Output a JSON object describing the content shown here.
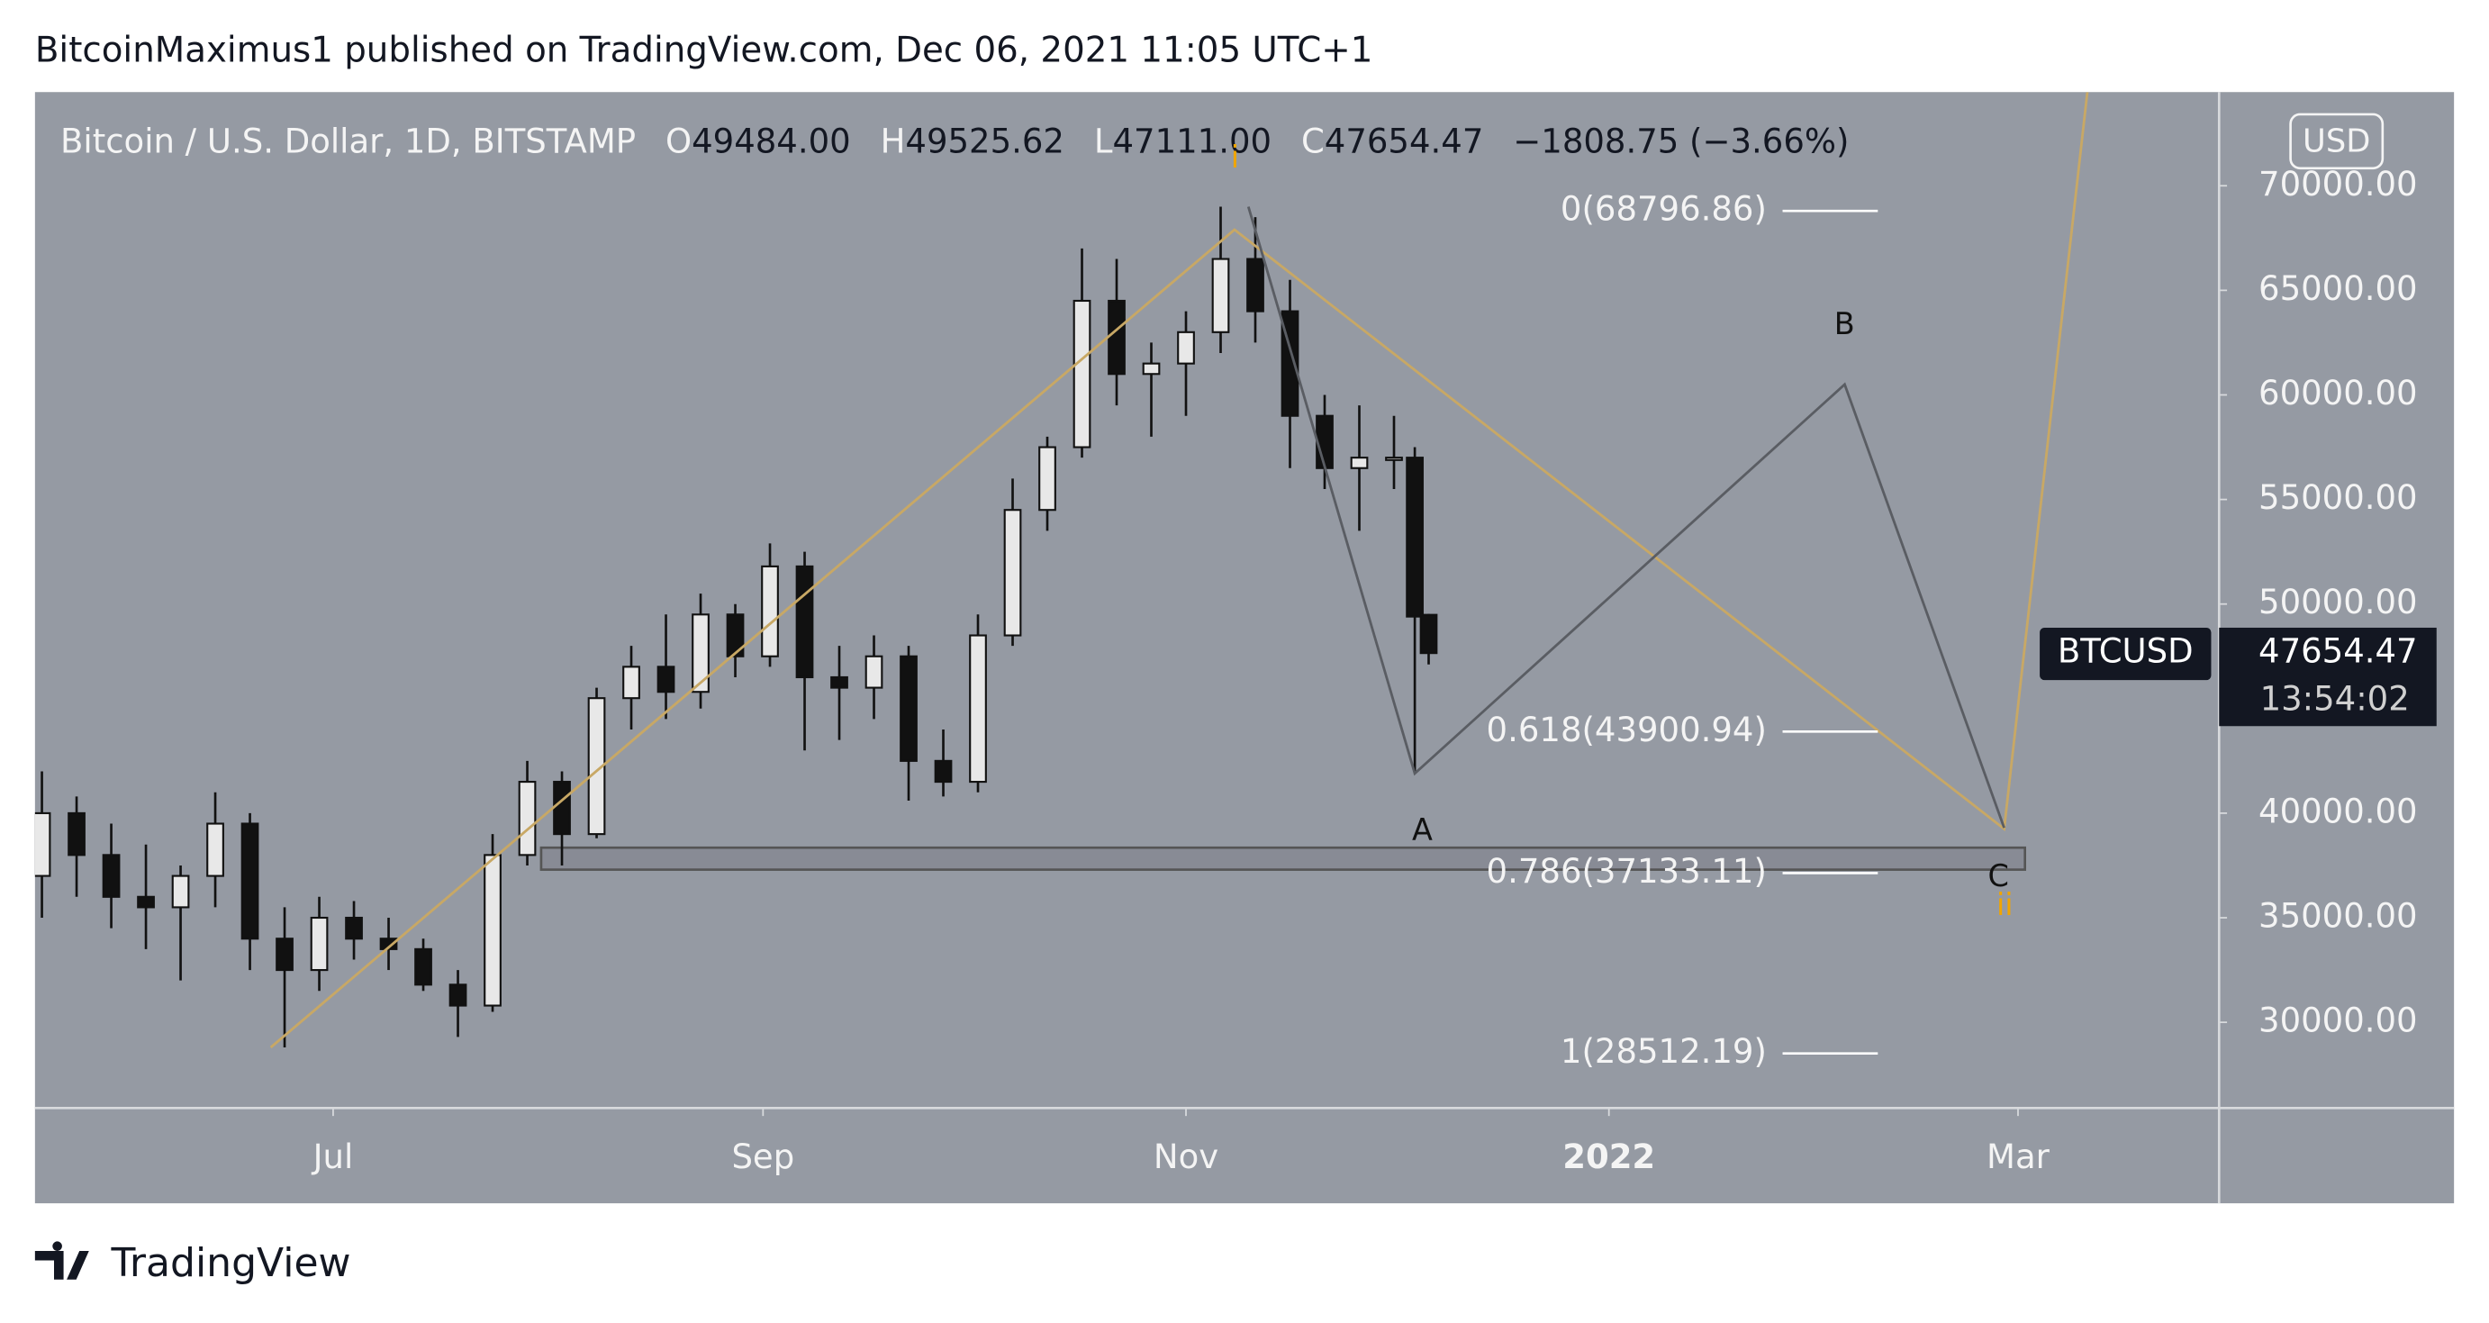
{
  "header": {
    "title": "BitcoinMaximus1 published on TradingView.com, Dec 06, 2021 11:05 UTC+1"
  },
  "footer": {
    "brand": "TradingView"
  },
  "chart_data": {
    "type": "candlestick",
    "symbol": "Bitcoin / U.S. Dollar, 1D, BITSTAMP",
    "ohlc_fields": [
      {
        "key": "O",
        "value": 49484,
        "label": "49484.00"
      },
      {
        "key": "H",
        "value": 49525.62,
        "label": "49525.62"
      },
      {
        "key": "L",
        "value": 47111,
        "label": "47111.00"
      },
      {
        "key": "C",
        "value": 47654.47,
        "label": "47654.47"
      }
    ],
    "change": "−1808.75 (−3.66%)",
    "currency": "USD",
    "price_tag": {
      "name": "BTCUSD",
      "value": 47654.47,
      "label": "47654.47",
      "countdown": "13:54:02"
    },
    "x": [
      "2021-05-20",
      "2021-05-25",
      "2021-05-30",
      "2021-06-04",
      "2021-06-09",
      "2021-06-14",
      "2021-06-19",
      "2021-06-24",
      "2021-06-29",
      "2021-07-04",
      "2021-07-09",
      "2021-07-14",
      "2021-07-19",
      "2021-07-24",
      "2021-07-29",
      "2021-08-03",
      "2021-08-08",
      "2021-08-13",
      "2021-08-18",
      "2021-08-23",
      "2021-08-28",
      "2021-09-02",
      "2021-09-07",
      "2021-09-12",
      "2021-09-17",
      "2021-09-22",
      "2021-09-27",
      "2021-10-02",
      "2021-10-07",
      "2021-10-12",
      "2021-10-17",
      "2021-10-22",
      "2021-10-27",
      "2021-11-01",
      "2021-11-06",
      "2021-11-11",
      "2021-11-16",
      "2021-11-21",
      "2021-11-26",
      "2021-12-01",
      "2021-12-04",
      "2021-12-06"
    ],
    "open": [
      37000,
      40000,
      38000,
      36000,
      35500,
      37000,
      39500,
      34000,
      32500,
      35000,
      34000,
      33500,
      31800,
      30800,
      38000,
      41500,
      39000,
      45500,
      47000,
      45800,
      49500,
      47500,
      51800,
      46500,
      46000,
      47500,
      42500,
      41500,
      48500,
      54500,
      57500,
      64500,
      61000,
      61500,
      63000,
      66500,
      64000,
      59000,
      56500,
      57000,
      57000,
      49484
    ],
    "high": [
      42000,
      40800,
      39500,
      38500,
      37500,
      41000,
      40000,
      35500,
      36000,
      35800,
      35000,
      34000,
      32500,
      39000,
      42500,
      42000,
      46000,
      48000,
      49500,
      50500,
      50000,
      52900,
      52500,
      48000,
      48500,
      48000,
      44000,
      49500,
      56000,
      58000,
      67000,
      66500,
      62500,
      64000,
      69000,
      68500,
      65500,
      60000,
      59500,
      59000,
      57500,
      49525.62
    ],
    "low": [
      35000,
      36000,
      34500,
      33500,
      32000,
      35500,
      32500,
      28800,
      31500,
      33000,
      32500,
      31500,
      29300,
      30500,
      37500,
      37500,
      38800,
      44000,
      44500,
      45000,
      46500,
      47000,
      43000,
      43500,
      44500,
      40600,
      40800,
      41000,
      48000,
      53500,
      57000,
      59500,
      58000,
      59000,
      62000,
      62500,
      56500,
      55500,
      53500,
      55500,
      42000,
      47111
    ],
    "close": [
      40000,
      38000,
      36000,
      35500,
      37000,
      39500,
      34000,
      32500,
      35000,
      34000,
      33500,
      31800,
      30800,
      38000,
      41500,
      39000,
      45500,
      47000,
      45800,
      49500,
      47500,
      51800,
      46500,
      46000,
      47500,
      42500,
      41500,
      48500,
      54500,
      57500,
      64500,
      61000,
      61500,
      63000,
      66500,
      64000,
      59000,
      56500,
      57000,
      57000,
      49400,
      47654.47
    ],
    "color": "#111111",
    "xlim": [
      "2021-05-19",
      "2022-03-30"
    ],
    "xticks": [
      {
        "value": "2021-07-01",
        "label": "Jul"
      },
      {
        "value": "2021-09-01",
        "label": "Sep"
      },
      {
        "value": "2021-11-01",
        "label": "Nov"
      },
      {
        "value": "2022-01-01",
        "label": "2022"
      },
      {
        "value": "2022-03-01",
        "label": "Mar"
      }
    ],
    "ylim": [
      25900,
      74480
    ],
    "yticks": [
      {
        "value": 30000,
        "label": "30000.00"
      },
      {
        "value": 35000,
        "label": "35000.00"
      },
      {
        "value": 40000,
        "label": "40000.00"
      },
      {
        "value": 45000,
        "label": "45000.00"
      },
      {
        "value": 50000,
        "label": "50000.00"
      },
      {
        "value": 55000,
        "label": "55000.00"
      },
      {
        "value": 60000,
        "label": "60000.00"
      },
      {
        "value": 65000,
        "label": "65000.00"
      },
      {
        "value": 70000,
        "label": "70000.00"
      }
    ],
    "fib_levels": [
      {
        "value": 68796.86,
        "label": "0(68796.86)"
      },
      {
        "value": 43900.94,
        "label": "0.618(43900.94)"
      },
      {
        "value": 37133.11,
        "label": "0.786(37133.11)"
      },
      {
        "value": 28512.19,
        "label": "1(28512.19)"
      }
    ],
    "zone": {
      "x": [
        "2021-07-31",
        "2022-03-02"
      ],
      "y": [
        37300,
        38350
      ]
    },
    "drawings": [
      {
        "color": "#c8a865",
        "x": [
          "2021-06-22",
          "2021-11-08",
          "2022-02-27",
          "2022-03-11"
        ],
        "y": [
          28800,
          67900,
          39250,
          74480
        ]
      },
      {
        "color": "#5a5d63",
        "x": [
          "2021-11-10",
          "2021-12-04",
          "2022-02-04",
          "2022-02-27"
        ],
        "y": [
          69000,
          41900,
          60500,
          39300
        ]
      }
    ],
    "annotations": [
      {
        "text": "i",
        "color": "#f0a500"
      },
      {
        "text": "ii",
        "color": "#f0a500"
      },
      {
        "text": "A",
        "color": "#111111"
      },
      {
        "text": "B",
        "color": "#111111"
      },
      {
        "text": "C",
        "color": "#111111"
      }
    ]
  }
}
